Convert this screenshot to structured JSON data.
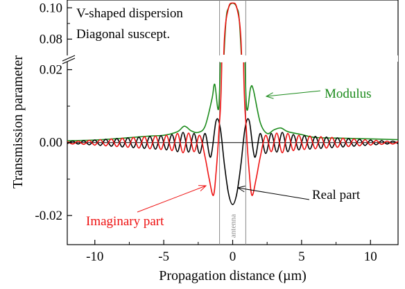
{
  "chart_data": {
    "type": "line",
    "xlabel": "Propagation distance (µm)",
    "ylabel": "Transmission parameter",
    "xlim": [
      -12,
      12
    ],
    "ylim_lower": [
      -0.028,
      0.022
    ],
    "ylim_upper": [
      0.07,
      0.105
    ],
    "broken_y_axis": true,
    "x_ticks": [
      -10,
      -5,
      0,
      5,
      10
    ],
    "y_ticks_lower": [
      -0.02,
      0.0,
      0.02
    ],
    "y_tick_labels_lower": [
      "-0.02",
      "0.00",
      "0.02"
    ],
    "y_ticks_upper": [
      0.08,
      0.1
    ],
    "y_tick_labels_upper": [
      "0.08",
      "0.10"
    ],
    "grid": false,
    "annotations": {
      "line1": "V-shaped dispersion",
      "line2": "Diagonal suscept.",
      "antenna": "antenna",
      "modulus_label": "Modulus",
      "real_label": "Real part",
      "imag_label": "Imaginary part"
    },
    "antenna_region": [
      -0.95,
      0.95
    ],
    "colors": {
      "modulus": "#1a8a1a",
      "real": "#000000",
      "imaginary": "#ee1111",
      "antenna": "#888888"
    },
    "series": [
      {
        "name": "Modulus",
        "x": [
          -12,
          -10,
          -8,
          -6,
          -5,
          -4,
          -3.5,
          -3,
          -2.5,
          -2,
          -1.5,
          -1.3,
          -1,
          -0.8,
          -0.5,
          -0.3,
          0,
          0.3,
          0.5,
          0.8,
          1,
          1.3,
          1.5,
          2,
          2.5,
          3,
          3.5,
          4,
          5,
          6,
          8,
          10,
          12
        ],
        "y": [
          0.0005,
          0.0007,
          0.0012,
          0.0018,
          0.002,
          0.003,
          0.0045,
          0.0032,
          0.0028,
          0.0045,
          0.012,
          0.016,
          0.01,
          0.04,
          0.09,
          0.1,
          0.103,
          0.1,
          0.09,
          0.04,
          0.01,
          0.015,
          0.0145,
          0.0055,
          0.0025,
          0.0035,
          0.004,
          0.003,
          0.0022,
          0.0014,
          0.0012,
          0.001,
          0.0008
        ]
      },
      {
        "name": "Real part",
        "x": [
          -12,
          -11.6,
          -11.2,
          -10.8,
          -10.4,
          -10,
          -9.6,
          -9.2,
          -8.8,
          -8.4,
          -8,
          -7.6,
          -7.2,
          -6.8,
          -6.4,
          -6,
          -5.6,
          -5.2,
          -4.8,
          -4.4,
          -4,
          -3.6,
          -3.2,
          -2.8,
          -2.4,
          -2,
          -1.6,
          -1.2,
          -0.9,
          -0.6,
          -0.3,
          0,
          0.3,
          0.6,
          0.9,
          1.2,
          1.6,
          2,
          2.4,
          2.8,
          3.2,
          3.6,
          4,
          4.4,
          4.8,
          5.2,
          5.6,
          6,
          6.4,
          6.8,
          7.2,
          7.6,
          8,
          8.4,
          8.8,
          9.2,
          9.6,
          10,
          10.4,
          10.8,
          11.2,
          11.6,
          12
        ],
        "y": [
          -0.0003,
          0.0004,
          -0.0004,
          0.0005,
          -0.0006,
          0.0007,
          -0.0008,
          0.0009,
          -0.001,
          0.0011,
          -0.0012,
          0.0013,
          -0.0014,
          0.0015,
          -0.0016,
          0.0017,
          -0.0018,
          0.0019,
          -0.002,
          0.0022,
          -0.0025,
          0.0028,
          -0.0026,
          0.0025,
          -0.003,
          0.0025,
          -0.004,
          0.006,
          0.004,
          -0.006,
          -0.014,
          -0.017,
          -0.014,
          -0.006,
          0.004,
          0.006,
          -0.004,
          0.0025,
          -0.003,
          0.0025,
          -0.0026,
          0.0028,
          -0.0025,
          0.0022,
          -0.002,
          0.0019,
          -0.0018,
          0.0017,
          -0.0016,
          0.0015,
          -0.0014,
          0.0013,
          -0.0012,
          0.0011,
          -0.001,
          0.0009,
          -0.0008,
          0.0007,
          -0.0006,
          0.0005,
          -0.0004,
          0.0004,
          -0.0003
        ]
      },
      {
        "name": "Imaginary part",
        "x": [
          -12,
          -11.6,
          -11.2,
          -10.8,
          -10.4,
          -10,
          -9.6,
          -9.2,
          -8.8,
          -8.4,
          -8,
          -7.6,
          -7.2,
          -6.8,
          -6.4,
          -6,
          -5.6,
          -5.2,
          -4.8,
          -4.4,
          -4,
          -3.6,
          -3.2,
          -2.8,
          -2.4,
          -2,
          -1.7,
          -1.4,
          -1.2,
          -1,
          -0.8,
          -0.6,
          -0.3,
          0,
          0.3,
          0.6,
          0.8,
          1,
          1.2,
          1.4,
          1.7,
          2,
          2.4,
          2.8,
          3.2,
          3.6,
          4,
          4.4,
          4.8,
          5.2,
          5.6,
          6,
          6.4,
          6.8,
          7.2,
          7.6,
          8,
          8.4,
          8.8,
          9.2,
          9.6,
          10,
          10.4,
          10.8,
          11.2,
          11.6,
          12
        ],
        "y": [
          0.0003,
          -0.0004,
          0.0004,
          -0.0005,
          0.0006,
          -0.0007,
          0.0008,
          -0.0009,
          0.001,
          -0.0011,
          0.0012,
          -0.0013,
          0.0014,
          -0.0015,
          0.0016,
          -0.0017,
          0.0018,
          -0.0019,
          0.002,
          -0.0022,
          0.0025,
          -0.0028,
          0.0026,
          -0.0025,
          0.002,
          -0.004,
          -0.01,
          -0.0145,
          -0.008,
          0.003,
          0.02,
          0.08,
          0.1,
          0.103,
          0.1,
          0.08,
          0.02,
          0.003,
          -0.008,
          -0.0145,
          -0.01,
          -0.004,
          0.002,
          -0.0025,
          0.0026,
          -0.0028,
          0.0025,
          -0.0022,
          0.002,
          -0.0019,
          0.0018,
          -0.0017,
          0.0016,
          -0.0015,
          0.0014,
          -0.0013,
          0.0012,
          -0.0011,
          0.001,
          -0.0009,
          0.0008,
          -0.0007,
          0.0006,
          -0.0005,
          0.0004,
          -0.0004,
          0.0003
        ]
      }
    ]
  }
}
